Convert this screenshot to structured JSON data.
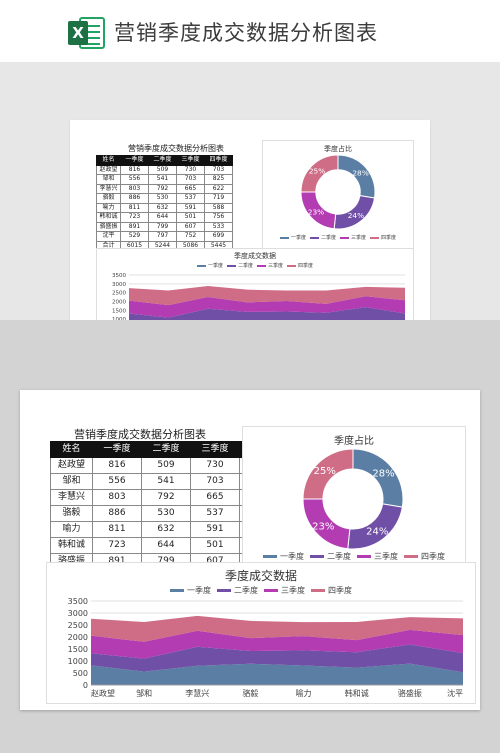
{
  "header": {
    "title": "营销季度成交数据分析图表",
    "app_icon": "excel-icon",
    "icon_letter": "X"
  },
  "sheet": {
    "table_title": "营销季度成交数据分析图表",
    "columns": [
      "姓名",
      "一季度",
      "二季度",
      "三季度",
      "四季度"
    ],
    "rows": [
      [
        "赵政望",
        "816",
        "509",
        "730",
        "703"
      ],
      [
        "邹和",
        "556",
        "541",
        "703",
        "825"
      ],
      [
        "李慧兴",
        "803",
        "792",
        "665",
        "622"
      ],
      [
        "骆毅",
        "886",
        "530",
        "537",
        "719"
      ],
      [
        "喻力",
        "811",
        "632",
        "591",
        "588"
      ],
      [
        "韩和诚",
        "723",
        "644",
        "501",
        "756"
      ],
      [
        "骆盛振",
        "891",
        "799",
        "607",
        "533"
      ],
      [
        "沈平",
        "529",
        "797",
        "752",
        "699"
      ],
      [
        "合计",
        "6015",
        "5244",
        "5086",
        "5445"
      ]
    ]
  },
  "colors": {
    "q1": "#5b7fa4",
    "q2": "#7050a6",
    "q3": "#b33cb3",
    "q4": "#cf6d86",
    "header_bg": "#111111"
  },
  "chart_data": [
    {
      "type": "pie",
      "title": "季度占比",
      "categories": [
        "一季度",
        "二季度",
        "三季度",
        "四季度"
      ],
      "values": [
        6015,
        5244,
        5086,
        5445
      ],
      "labels": [
        "28%",
        "24%",
        "23%",
        "25%"
      ],
      "legend": "bottom"
    },
    {
      "type": "area",
      "title": "季度成交数据",
      "x": [
        "赵政望",
        "邹和",
        "李慧兴",
        "骆毅",
        "喻力",
        "韩和诚",
        "骆盛振",
        "沈平"
      ],
      "series": [
        {
          "name": "一季度",
          "values": [
            816,
            556,
            803,
            886,
            811,
            723,
            891,
            529
          ]
        },
        {
          "name": "二季度",
          "values": [
            509,
            541,
            792,
            530,
            632,
            644,
            799,
            797
          ]
        },
        {
          "name": "三季度",
          "values": [
            730,
            703,
            665,
            537,
            591,
            501,
            607,
            752
          ]
        },
        {
          "name": "四季度",
          "values": [
            703,
            825,
            622,
            719,
            588,
            756,
            533,
            699
          ]
        }
      ],
      "stacked": true,
      "ylim": [
        0,
        3500
      ],
      "yticks": [
        "0",
        "500",
        "1000",
        "1500",
        "2000",
        "2500",
        "3000",
        "3500"
      ],
      "grid": true,
      "legend": "top"
    }
  ]
}
